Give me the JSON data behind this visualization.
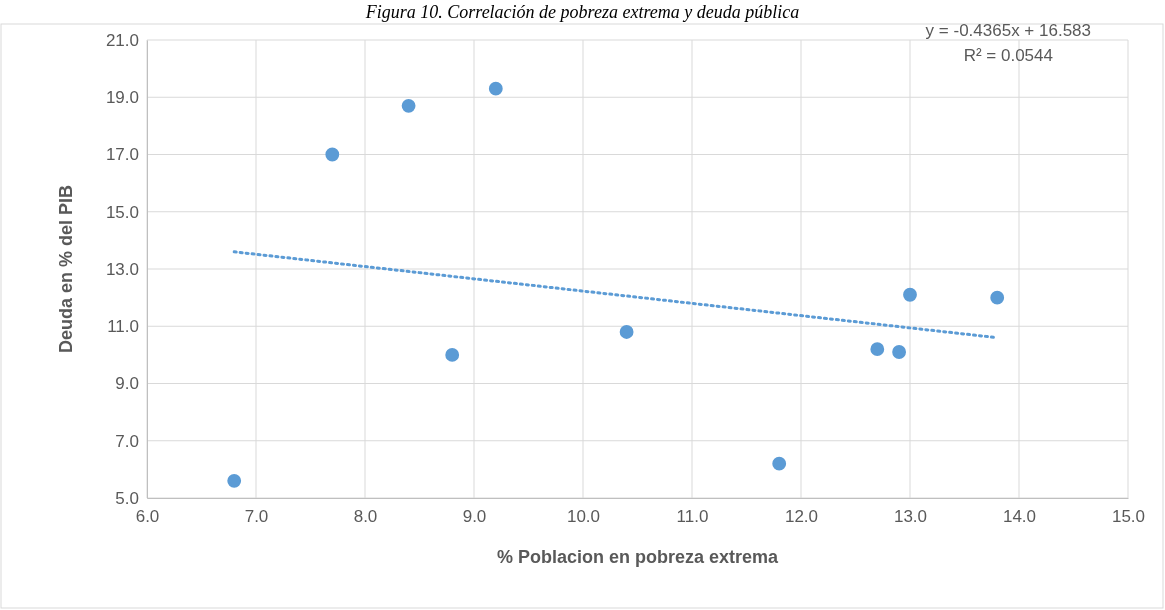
{
  "chart_data": {
    "type": "scatter",
    "title": "Figura 10. Correlación de pobreza extrema y deuda pública",
    "xlabel": "% Poblacion en pobreza extrema",
    "ylabel": "Deuda en % del PIB",
    "xlim": [
      6.0,
      15.0
    ],
    "xticks": [
      {
        "value": 6,
        "label": "6.0"
      },
      {
        "value": 7,
        "label": "7.0"
      },
      {
        "value": 8,
        "label": "8.0"
      },
      {
        "value": 9,
        "label": "9.0"
      },
      {
        "value": 10,
        "label": "10.0"
      },
      {
        "value": 11,
        "label": "11.0"
      },
      {
        "value": 12,
        "label": "12.0"
      },
      {
        "value": 13,
        "label": "13.0"
      },
      {
        "value": 14,
        "label": "14.0"
      },
      {
        "value": 15,
        "label": "15.0"
      }
    ],
    "ylim": [
      5.0,
      21.0
    ],
    "yticks": [
      {
        "value": 5,
        "label": "5.0"
      },
      {
        "value": 7,
        "label": "7.0"
      },
      {
        "value": 9,
        "label": "9.0"
      },
      {
        "value": 11,
        "label": "11.0"
      },
      {
        "value": 13,
        "label": "13.0"
      },
      {
        "value": 15,
        "label": "15.0"
      },
      {
        "value": 17,
        "label": "17.0"
      },
      {
        "value": 19,
        "label": "19.0"
      },
      {
        "value": 21,
        "label": "21.0"
      }
    ],
    "grid": true,
    "series": [
      {
        "marker": "circle",
        "color": "#5b9bd5",
        "x": [
          6.8,
          7.7,
          8.4,
          8.8,
          9.2,
          10.4,
          11.8,
          12.7,
          12.9,
          13.0,
          13.8
        ],
        "values": [
          5.6,
          17.0,
          18.7,
          10.0,
          19.3,
          10.8,
          6.2,
          10.2,
          10.1,
          12.1,
          12.0
        ]
      },
      {
        "type": "line",
        "color": "#5b9bd5",
        "line_style": "dotted",
        "x": [
          6.8,
          13.8
        ],
        "values": [
          13.6,
          10.6
        ]
      }
    ],
    "annotations": [
      "y = -0.4365x + 16.583",
      "R² = 0.0544"
    ]
  }
}
